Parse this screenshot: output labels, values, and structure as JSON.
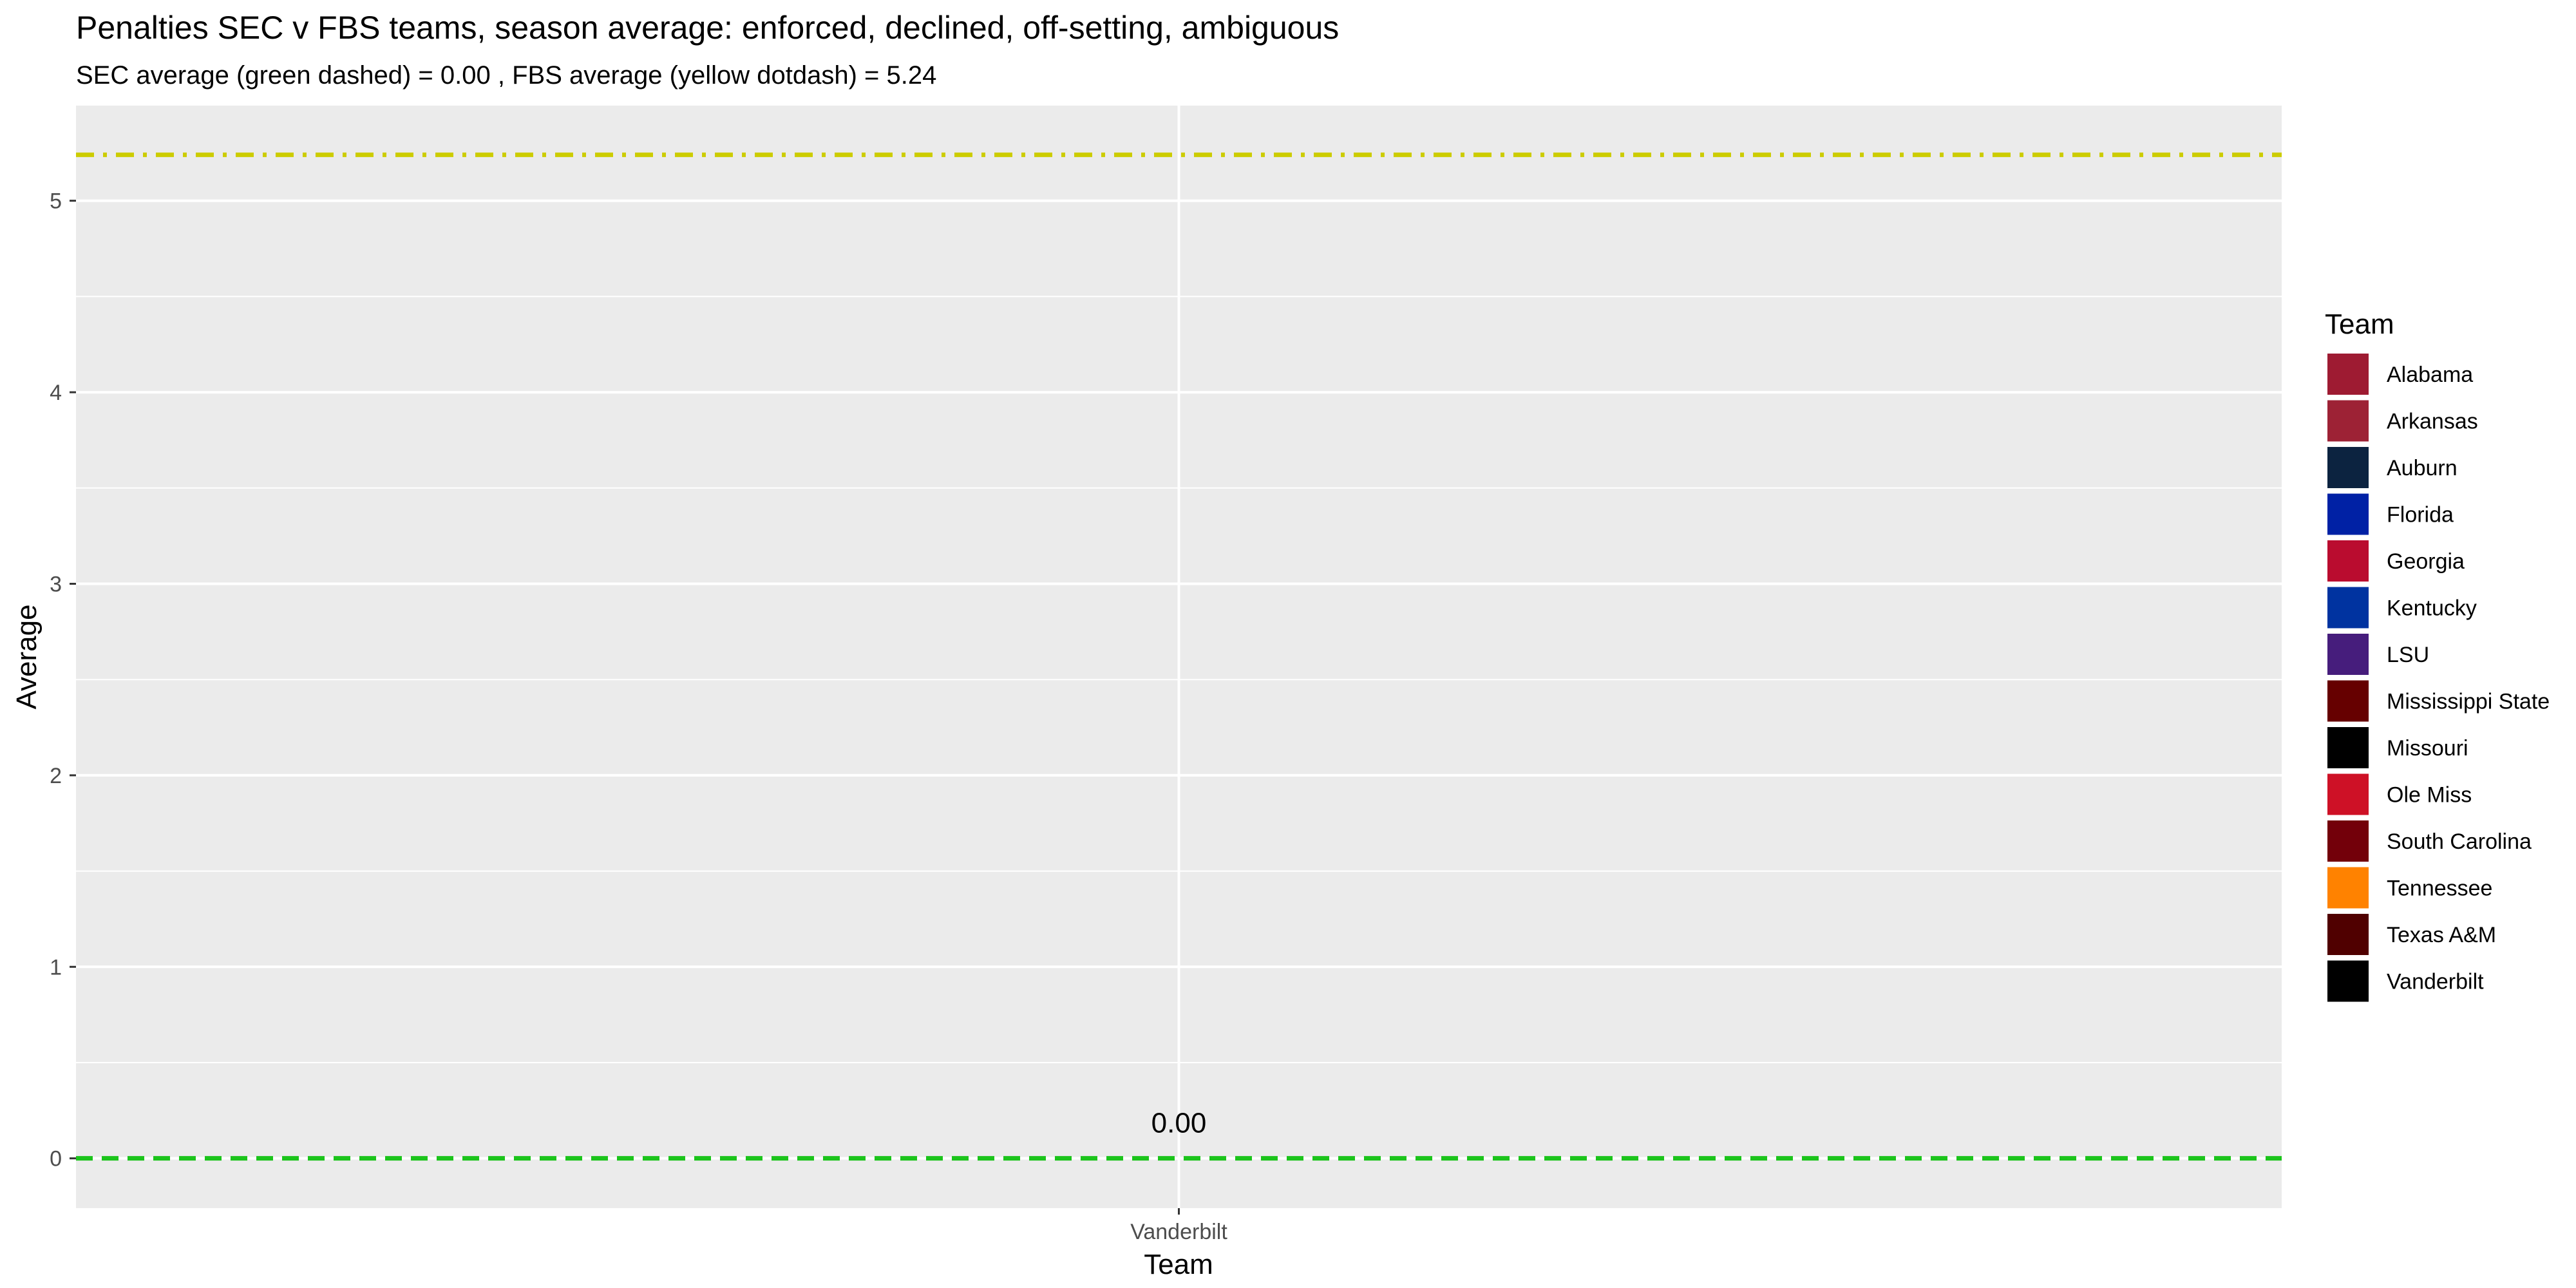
{
  "chart_data": {
    "type": "bar",
    "title": "Penalties SEC v FBS teams, season average: enforced, declined, off-setting, ambiguous",
    "subtitle": "SEC average (green dashed) =  0.00 , FBS average (yellow dotdash) =  5.24",
    "xlabel": "Team",
    "ylabel": "Average",
    "categories": [
      "Vanderbilt"
    ],
    "values": [
      0.0
    ],
    "value_labels": [
      "0.00"
    ],
    "ylim": [
      -0.26,
      5.5
    ],
    "yticks": [
      0,
      1,
      2,
      3,
      4,
      5
    ],
    "ytick_labels": [
      "0",
      "1",
      "2",
      "3",
      "4",
      "5"
    ],
    "grid": true,
    "panel_background": "#EBEBEB",
    "reference_lines": [
      {
        "label": "SEC average",
        "value": 0.0,
        "style": "dashed",
        "color": "#1BC41B"
      },
      {
        "label": "FBS average",
        "value": 5.24,
        "style": "dotdash",
        "color": "#CCCC00"
      }
    ],
    "legend": {
      "title": "Team",
      "placement": "right",
      "items": [
        {
          "label": "Alabama",
          "color": "#9E1B32"
        },
        {
          "label": "Arkansas",
          "color": "#9D2235"
        },
        {
          "label": "Auburn",
          "color": "#0C2340"
        },
        {
          "label": "Florida",
          "color": "#0021A5"
        },
        {
          "label": "Georgia",
          "color": "#BA0C2F"
        },
        {
          "label": "Kentucky",
          "color": "#0033A0"
        },
        {
          "label": "LSU",
          "color": "#461D7C"
        },
        {
          "label": "Mississippi State",
          "color": "#660000"
        },
        {
          "label": "Missouri",
          "color": "#000000"
        },
        {
          "label": "Ole Miss",
          "color": "#CE1126"
        },
        {
          "label": "South Carolina",
          "color": "#73000A"
        },
        {
          "label": "Tennessee",
          "color": "#FF8200"
        },
        {
          "label": "Texas A&M",
          "color": "#500000"
        },
        {
          "label": "Vanderbilt",
          "color": "#000000"
        }
      ]
    }
  }
}
